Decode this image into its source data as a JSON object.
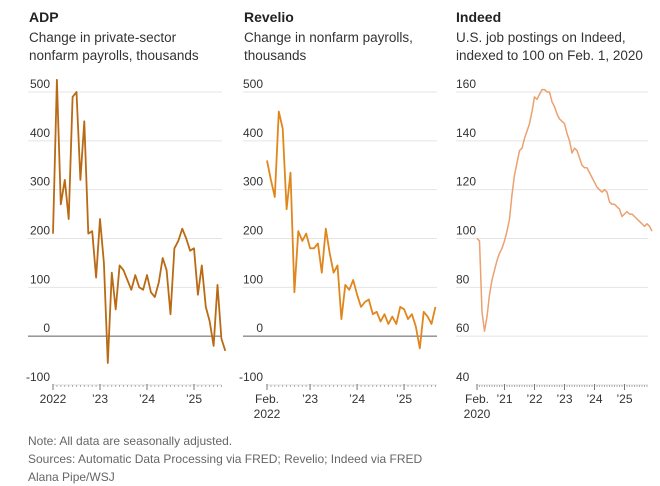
{
  "panels": [
    {
      "title": "ADP",
      "subtitle_lines": [
        "Change in private-sector",
        "nonfarm payrolls, thousands"
      ]
    },
    {
      "title": "Revelio",
      "subtitle_lines": [
        "Change in nonfarm payrolls,",
        "thousands"
      ]
    },
    {
      "title": "Indeed",
      "subtitle_lines": [
        "U.S. job postings on Indeed,",
        "indexed to 100 on Feb. 1, 2020"
      ]
    }
  ],
  "footer": {
    "note": "Note: All data are seasonally adjusted.",
    "sources": "Sources: Automatic Data Processing via FRED; Revelio; Indeed via FRED",
    "credit": "Alana Pipe/WSJ"
  },
  "chart_data": [
    {
      "type": "line",
      "title": "ADP",
      "subtitle": "Change in private-sector nonfarm payrolls, thousands",
      "color": "#b96a14",
      "start": "2022-01",
      "frequency": "monthly",
      "values": [
        210,
        525,
        270,
        320,
        240,
        490,
        500,
        320,
        440,
        210,
        215,
        120,
        240,
        150,
        -55,
        130,
        55,
        145,
        135,
        115,
        95,
        125,
        100,
        95,
        125,
        90,
        80,
        110,
        160,
        135,
        45,
        180,
        195,
        220,
        200,
        175,
        180,
        85,
        145,
        60,
        30,
        -20,
        105,
        -5,
        -30
      ],
      "ylim": [
        -100,
        500
      ],
      "yticks": [
        -100,
        0,
        100,
        200,
        300,
        400,
        500
      ],
      "ytick_labels": [
        "-100",
        "0",
        "100",
        "200",
        "300",
        "400",
        "500"
      ],
      "xtick_labels": [
        [
          "2022"
        ],
        [
          "’23"
        ],
        [
          "’24"
        ],
        [
          "’25"
        ]
      ],
      "xtick_months": [
        0,
        12,
        24,
        36
      ],
      "zero_line": true,
      "grid": true
    },
    {
      "type": "line",
      "title": "Revelio",
      "subtitle": "Change in nonfarm payrolls, thousands",
      "color": "#e0861c",
      "start": "2022-02",
      "frequency": "monthly",
      "values": [
        360,
        320,
        285,
        460,
        425,
        260,
        335,
        90,
        215,
        195,
        210,
        180,
        180,
        190,
        130,
        220,
        170,
        130,
        145,
        35,
        105,
        95,
        115,
        85,
        60,
        70,
        75,
        45,
        50,
        30,
        45,
        25,
        40,
        25,
        60,
        55,
        35,
        45,
        20,
        -25,
        50,
        40,
        25,
        60
      ],
      "ylim": [
        -100,
        500
      ],
      "yticks": [
        -100,
        0,
        100,
        200,
        300,
        400,
        500
      ],
      "ytick_labels": [
        "-100",
        "0",
        "100",
        "200",
        "300",
        "400",
        "500"
      ],
      "xtick_labels": [
        [
          "Feb.",
          "2022"
        ],
        [
          "’23"
        ],
        [
          "’24"
        ],
        [
          "’25"
        ]
      ],
      "xtick_months": [
        0,
        11,
        23,
        35
      ],
      "zero_line": true,
      "grid": true
    },
    {
      "type": "line",
      "title": "Indeed",
      "subtitle": "U.S. job postings on Indeed, indexed to 100 on Feb. 1, 2020",
      "color": "#eba170",
      "start": "2020-02",
      "frequency": "monthly",
      "values": [
        100,
        99,
        70,
        62,
        68,
        77,
        83,
        87,
        91,
        94,
        96,
        99,
        103,
        108,
        118,
        126,
        131,
        136,
        137,
        141,
        144,
        147,
        152,
        158,
        157,
        159,
        161,
        161,
        160,
        160,
        156,
        154,
        151,
        149,
        148,
        147,
        143,
        140,
        135,
        137,
        136,
        133,
        130,
        129,
        129,
        127,
        125,
        123,
        121,
        120,
        119,
        120,
        119,
        115,
        114,
        114,
        113,
        112,
        109,
        110,
        111,
        110,
        110,
        109,
        108,
        107,
        106,
        105,
        106,
        105,
        103
      ],
      "ylim": [
        40,
        160
      ],
      "yticks": [
        40,
        60,
        80,
        100,
        120,
        140,
        160
      ],
      "ytick_labels": [
        "40",
        "60",
        "80",
        "100",
        "120",
        "140",
        "160"
      ],
      "xtick_labels": [
        [
          "Feb.",
          "2020"
        ],
        [
          "’21"
        ],
        [
          "’22"
        ],
        [
          "’23"
        ],
        [
          "’24"
        ],
        [
          "’25"
        ]
      ],
      "xtick_months": [
        0,
        11,
        23,
        35,
        47,
        59
      ],
      "zero_line": false,
      "grid": true
    }
  ]
}
